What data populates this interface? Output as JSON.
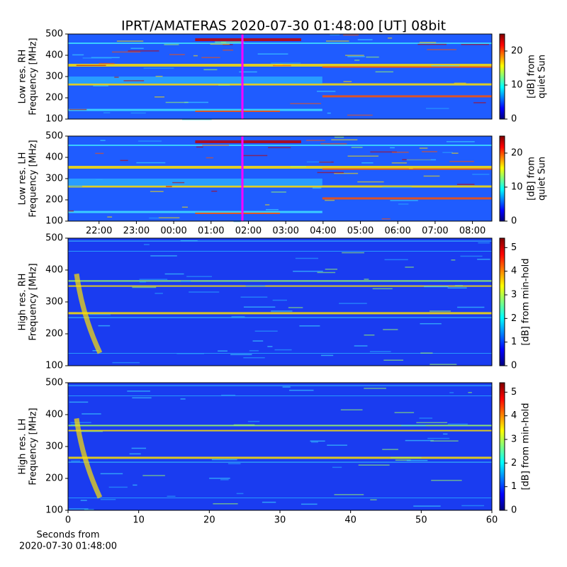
{
  "chart_data": [
    {
      "type": "heatmap",
      "title": "IPRT/AMATERAS 2020-07-30 01:48:00 [UT]   08bit",
      "ylabel": [
        "Low res. RH",
        "Frequency [MHz]"
      ],
      "ylim": [
        100,
        500
      ],
      "yticks": [
        100,
        200,
        300,
        400,
        500
      ],
      "xlim": [
        21.17,
        32.52
      ],
      "clabel": [
        "[dB] from",
        "quiet Sun"
      ],
      "clim": [
        0,
        25
      ],
      "cticks": [
        0,
        10,
        20
      ]
    },
    {
      "type": "heatmap",
      "ylabel": [
        "Low res. LH",
        "Frequency [MHz]"
      ],
      "ylim": [
        100,
        500
      ],
      "yticks": [
        100,
        200,
        300,
        400,
        500
      ],
      "xlim": [
        21.17,
        32.52
      ],
      "xticks": [
        {
          "value": 22,
          "label": "22:00"
        },
        {
          "value": 23,
          "label": "23:00"
        },
        {
          "value": 24,
          "label": "00:00"
        },
        {
          "value": 25,
          "label": "01:00"
        },
        {
          "value": 26,
          "label": "02:00"
        },
        {
          "value": 27,
          "label": "03:00"
        },
        {
          "value": 28,
          "label": "04:00"
        },
        {
          "value": 29,
          "label": "05:00"
        },
        {
          "value": 30,
          "label": "06:00"
        },
        {
          "value": 31,
          "label": "07:00"
        },
        {
          "value": 32,
          "label": "08:00"
        }
      ],
      "clabel": [
        "[dB] from",
        "quiet Sun"
      ],
      "clim": [
        0,
        25
      ],
      "cticks": [
        0,
        10,
        20
      ]
    },
    {
      "type": "heatmap",
      "ylabel": [
        "High res. RH",
        "Frequency [MHz]"
      ],
      "ylim": [
        100,
        500
      ],
      "yticks": [
        100,
        200,
        300,
        400,
        500
      ],
      "xlim": [
        0,
        60
      ],
      "clabel": [
        "[dB] from min-hold"
      ],
      "clim": [
        0,
        5.4
      ],
      "cticks": [
        0,
        1,
        2,
        3,
        4,
        5
      ]
    },
    {
      "type": "heatmap",
      "ylabel": [
        "High res. LH",
        "Frequency [MHz]"
      ],
      "ylim": [
        100,
        500
      ],
      "yticks": [
        100,
        200,
        300,
        400,
        500
      ],
      "xlim": [
        0,
        60
      ],
      "xticks": [
        0,
        10,
        20,
        30,
        40,
        50,
        60
      ],
      "xlabel": [
        "Seconds from",
        "2020-07-30 01:48:00"
      ],
      "clabel": [
        "[dB] from min-hold"
      ],
      "clim": [
        0,
        5.4
      ],
      "cticks": [
        0,
        1,
        2,
        3,
        4,
        5
      ]
    }
  ]
}
